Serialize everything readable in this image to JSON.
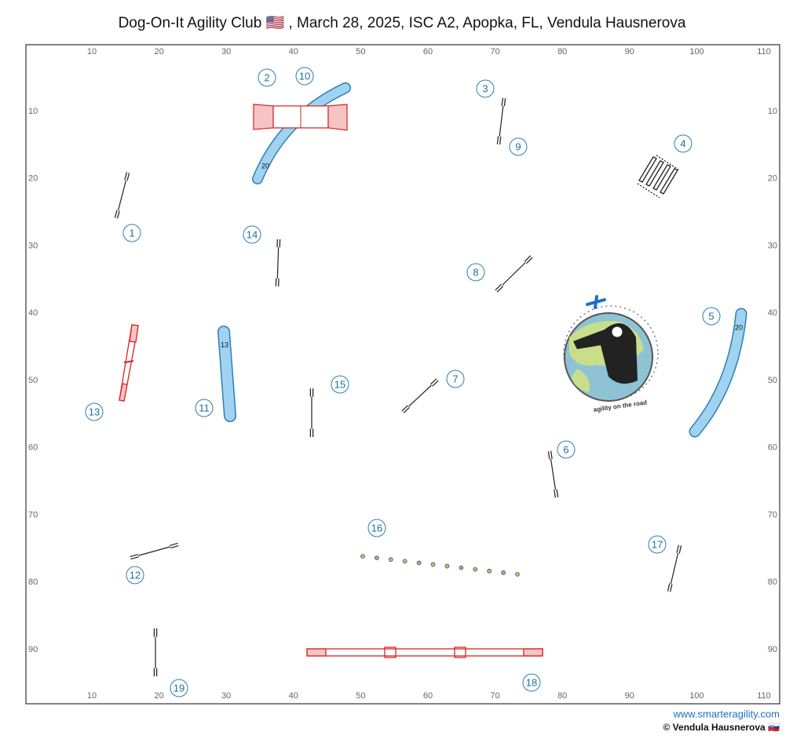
{
  "header": {
    "title": "Dog-On-It Agility Club 🇺🇸 , March 28, 2025, ISC A2, Apopka, FL, Vendula Hausnerova"
  },
  "x_labels": [
    10,
    20,
    30,
    40,
    50,
    60,
    70,
    80,
    90,
    100,
    110
  ],
  "y_labels": [
    10,
    20,
    30,
    40,
    50,
    60,
    70,
    80,
    90
  ],
  "numbers": [
    "1",
    "2",
    "3",
    "4",
    "5",
    "6",
    "7",
    "8",
    "9",
    "10",
    "11",
    "12",
    "13",
    "14",
    "15",
    "16",
    "17",
    "18",
    "19"
  ],
  "tunnel_labels": [
    "20",
    "13",
    "20"
  ],
  "logo": {
    "text": "agility on the road"
  },
  "footer": {
    "website": "www.smarteragility.com",
    "copyright": "© Vendula Hausnerova 🇸🇰"
  }
}
